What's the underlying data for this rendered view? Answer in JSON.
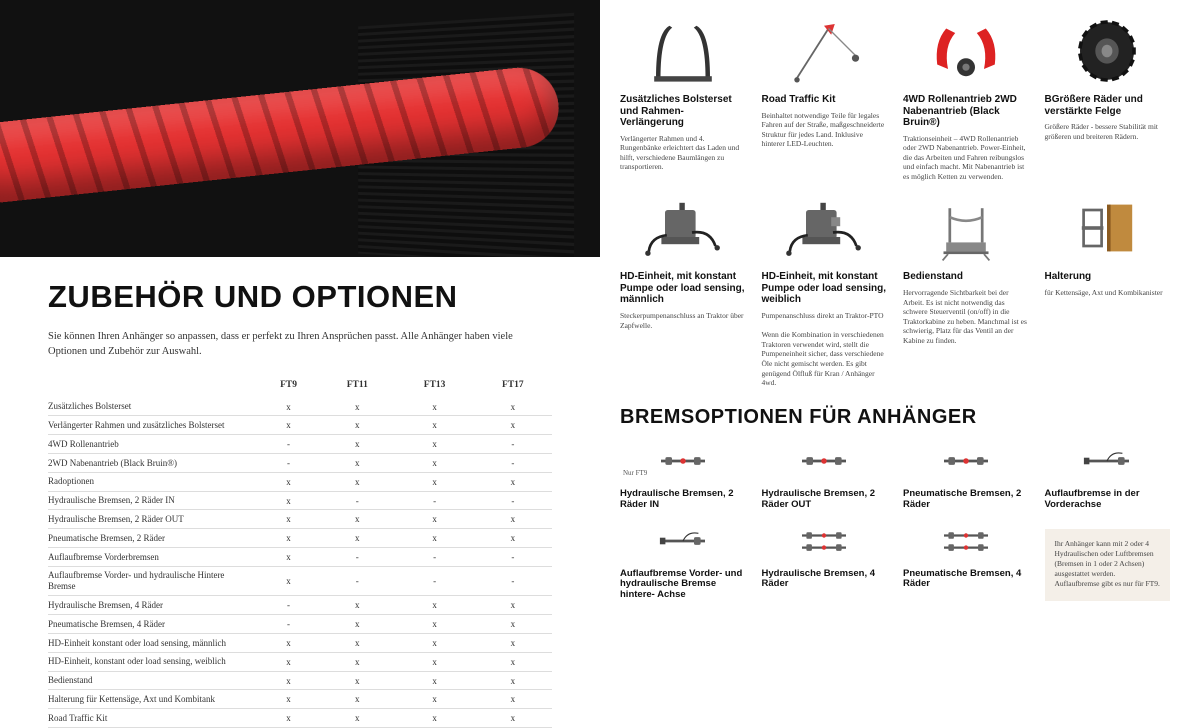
{
  "left": {
    "title": "ZUBEHÖR UND OPTIONEN",
    "intro": "Sie können Ihren Anhänger so anpassen, dass er perfekt zu Ihren Ansprüchen passt. Alle Anhänger haben viele Optionen und Zubehör zur Auswahl.",
    "table": {
      "header_cols": [
        "FT9",
        "FT11",
        "FT13",
        "FT17"
      ],
      "rows": [
        {
          "label": "Zusätzliches Bolsterset",
          "vals": [
            "x",
            "x",
            "x",
            "x"
          ]
        },
        {
          "label": "Verlängerter Rahmen und zusätzliches Bolsterset",
          "vals": [
            "x",
            "x",
            "x",
            "x"
          ]
        },
        {
          "label": "4WD Rollenantrieb",
          "vals": [
            "-",
            "x",
            "x",
            "-"
          ]
        },
        {
          "label": "2WD Nabenantrieb (Black Bruin®)",
          "vals": [
            "-",
            "x",
            "x",
            "-"
          ]
        },
        {
          "label": "Radoptionen",
          "vals": [
            "x",
            "x",
            "x",
            "x"
          ]
        },
        {
          "label": "Hydraulische Bremsen, 2 Räder IN",
          "vals": [
            "x",
            "-",
            "-",
            "-"
          ]
        },
        {
          "label": "Hydraulische Bremsen, 2 Räder OUT",
          "vals": [
            "x",
            "x",
            "x",
            "x"
          ]
        },
        {
          "label": "Pneumatische Bremsen, 2 Räder",
          "vals": [
            "x",
            "x",
            "x",
            "x"
          ]
        },
        {
          "label": "Auflaufbremse Vorderbremsen",
          "vals": [
            "x",
            "-",
            "-",
            "-"
          ]
        },
        {
          "label": "Auflaufbremse Vorder- und hydraulische Hintere Bremse",
          "vals": [
            "x",
            "-",
            "-",
            "-"
          ]
        },
        {
          "label": "Hydraulische Bremsen, 4 Räder",
          "vals": [
            "-",
            "x",
            "x",
            "x"
          ]
        },
        {
          "label": "Pneumatische Bremsen, 4 Räder",
          "vals": [
            "-",
            "x",
            "x",
            "x"
          ]
        },
        {
          "label": "HD-Einheit konstant  oder load sensing, männlich",
          "vals": [
            "x",
            "x",
            "x",
            "x"
          ]
        },
        {
          "label": "HD-Einheit, konstant oder load sensing, weiblich",
          "vals": [
            "x",
            "x",
            "x",
            "x"
          ]
        },
        {
          "label": "Bedienstand",
          "vals": [
            "x",
            "x",
            "x",
            "x"
          ]
        },
        {
          "label": "Halterung für Kettensäge, Axt und Kombitank",
          "vals": [
            "x",
            "x",
            "x",
            "x"
          ]
        },
        {
          "label": "Road Traffic Kit",
          "vals": [
            "x",
            "x",
            "x",
            "x"
          ]
        }
      ]
    }
  },
  "right": {
    "options": [
      {
        "title": "Zusätzliches Bolsterset und Rahmen-Verlängerung",
        "desc": "Verlängerter Rahmen und 4. Rungenbänke erleichtert das Laden und hilft, verschiedene Baumlängen zu transportieren.",
        "icon": "bolster"
      },
      {
        "title": "Road Traffic Kit",
        "desc": "Beinhaltet notwendige Teile für legales Fahren auf der Straße, maßgeschneiderte Struktur für jedes Land. Inklusive hinterer LED-Leuchten.",
        "icon": "traffic"
      },
      {
        "title": "4WD Rollenantrieb 2WD Nabenantrieb (Black Bruin®)",
        "desc": "Traktionseinheit – 4WD Rollenantrieb oder 2WD Nabenantrieb. Power-Einheit, die das Arbeiten und Fahren reibungslos und einfach macht. Mit Nabenantrieb ist es möglich Ketten zu verwenden.",
        "icon": "drive"
      },
      {
        "title": "BGrößere Räder und verstärkte Felge",
        "desc": "Größere Räder - bessere Stabilität mit größeren und breiteren Rädern.",
        "icon": "wheel"
      },
      {
        "title": "HD-Einheit, mit konstant Pumpe oder load sensing, männlich",
        "desc": "Steckerpumpenanschluss an Traktor über Zapfwelle.",
        "icon": "hdunit-m"
      },
      {
        "title": "HD-Einheit, mit konstant Pumpe oder load sensing, weiblich",
        "desc": "Pumpenanschluss direkt an Traktor-PTO\n\nWenn die Kombination in verschiedenen Traktoren verwendet wird, stellt die Pumpeneinheit sicher, dass verschiedene Öle nicht gemischt werden. Es gibt genügend Ölfluß für Kran / Anhänger 4wd.",
        "icon": "hdunit-f"
      },
      {
        "title": "Bedienstand",
        "desc": "Hervorragende Sichtbarkeit bei der Arbeit. Es ist nicht notwendig das schwere Steuerventil (on/off) in die Traktorkabine zu heben. Manchmal ist es schwierig, Platz für das Ventil an der Kabine zu finden.",
        "icon": "platform"
      },
      {
        "title": "Halterung",
        "desc": "für Kettensäge, Axt und Kombikanister",
        "icon": "holder"
      }
    ],
    "brakes_title": "BREMSOPTIONEN FÜR ANHÄNGER",
    "only_note": "Nur FT9",
    "brakes": [
      {
        "title": "Hydraulische Bremsen, 2 Räder IN"
      },
      {
        "title": "Hydraulische Bremsen, 2 Räder OUT"
      },
      {
        "title": "Pneumatische Bremsen, 2 Räder"
      },
      {
        "title": "Auflaufbremse in der Vorderachse"
      },
      {
        "title": "Auflaufbremse Vorder- und hydraulische Bremse hintere- Achse"
      },
      {
        "title": "Hydraulische Bremsen, 4 Räder"
      },
      {
        "title": "Pneumatische Bremsen, 4 Räder"
      }
    ],
    "info_box": "Ihr Anhänger kann mit 2 oder 4 Hydraulischen oder Luftbremsen (Bremsen in 1 oder 2 Achsen) ausgestattet werden. Auflaufbremse gibt es nur für FT9."
  },
  "colors": {
    "accent_red": "#e63232",
    "text": "#111111",
    "muted": "#444444",
    "divider": "#dddddd",
    "info_bg": "#f4efe8"
  }
}
